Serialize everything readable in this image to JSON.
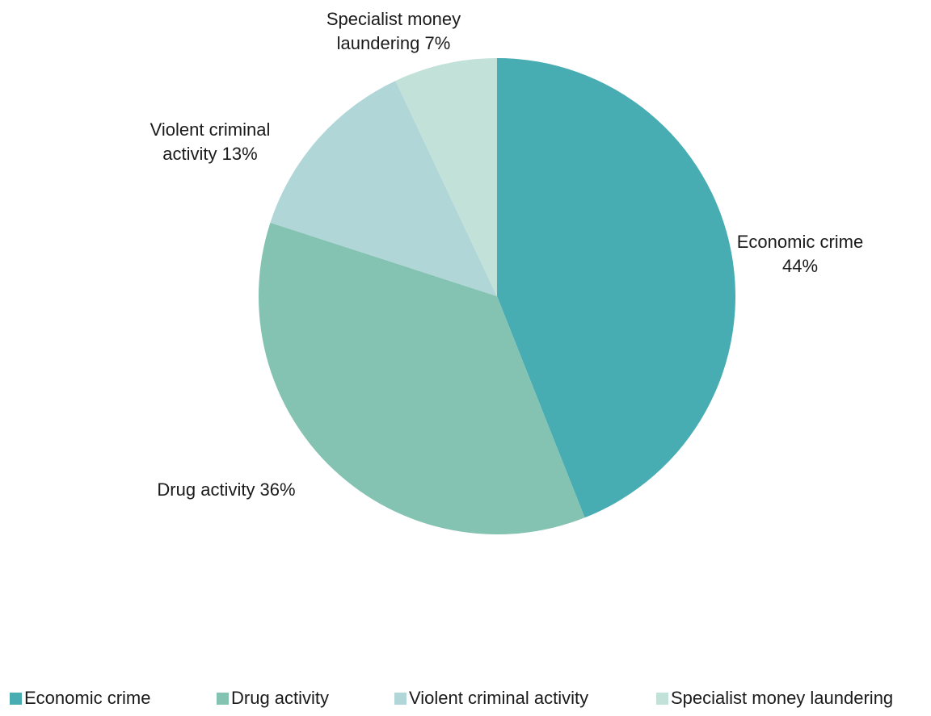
{
  "chart_data": {
    "type": "pie",
    "title": "",
    "start_angle_deg": 0,
    "direction": "clockwise",
    "slices": [
      {
        "name": "Economic crime",
        "value": 44,
        "label_lines": [
          "Economic crime",
          "44%"
        ],
        "color": "#48acb3"
      },
      {
        "name": "Drug activity",
        "value": 36,
        "label_lines": [
          "Drug activity 36%"
        ],
        "color": "#84c2b1"
      },
      {
        "name": "Violent criminal activity",
        "value": 13,
        "label_lines": [
          "Violent criminal",
          "activity 13%"
        ],
        "color": "#b0d6d8"
      },
      {
        "name": "Specialist money laundering",
        "value": 7,
        "label_lines": [
          "Specialist money",
          "laundering 7%"
        ],
        "color": "#c2e1d9"
      }
    ],
    "legend": {
      "placement": "bottom",
      "entries": [
        "Economic crime",
        "Drug activity",
        "Violent criminal activity",
        "Specialist money laundering"
      ]
    }
  }
}
